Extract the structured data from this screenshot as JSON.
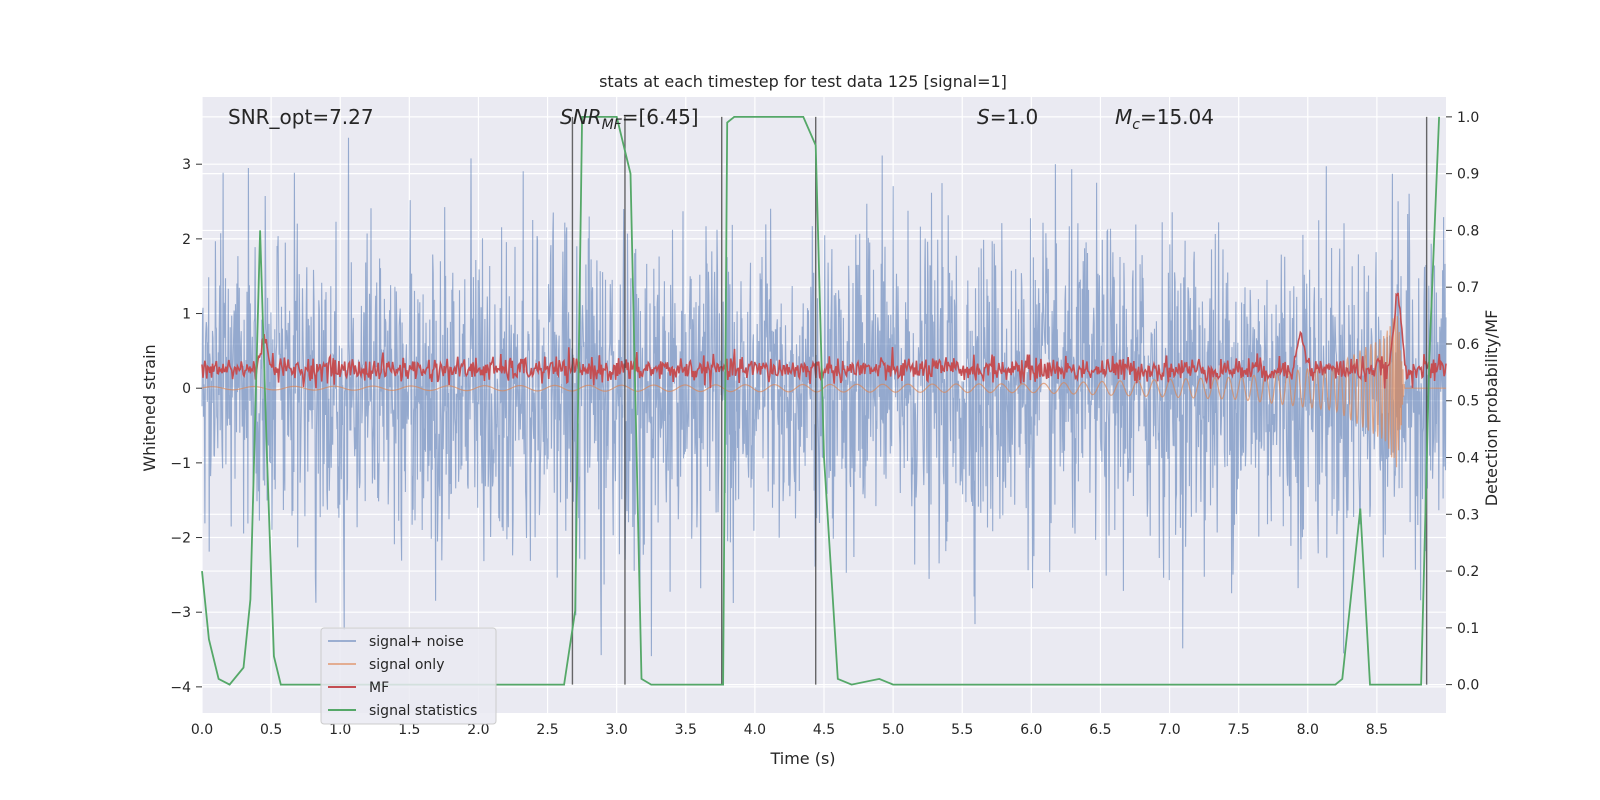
{
  "chart_data": {
    "type": "line",
    "title": "stats at each timestep for test data 125 [signal=1]",
    "xlabel": "Time (s)",
    "ylabel_left": "Whitened strain",
    "ylabel_right": "Detection probability/MF",
    "xlim": [
      0,
      9
    ],
    "ylim_left": [
      -4.35,
      3.9
    ],
    "ylim_right": [
      -0.05,
      1.035
    ],
    "xticks": [
      "0.0",
      "0.5",
      "1.0",
      "1.5",
      "2.0",
      "2.5",
      "3.0",
      "3.5",
      "4.0",
      "4.5",
      "5.0",
      "5.5",
      "6.0",
      "6.5",
      "7.0",
      "7.5",
      "8.0",
      "8.5"
    ],
    "yticks_left": [
      "3",
      "2",
      "1",
      "0",
      "−1",
      "−2",
      "−3",
      "−4"
    ],
    "yticks_right": [
      "1.0",
      "0.9",
      "0.8",
      "0.7",
      "0.6",
      "0.5",
      "0.4",
      "0.3",
      "0.2",
      "0.1",
      "0.0"
    ],
    "grid": true,
    "legend_position": "lower-left",
    "annotations": {
      "snr_opt": "SNR_opt=7.27",
      "snr_mf_base": "SNR",
      "snr_mf_sub": "MF",
      "snr_mf_value": "=[6.45]",
      "s_var": "S",
      "s_value": "=1.0",
      "mc_var": "M",
      "mc_sub": "c",
      "mc_value": "=15.04"
    },
    "vertical_lines_x": [
      2.68,
      3.06,
      3.76,
      4.44,
      8.86
    ],
    "series": [
      {
        "name": "signal+ noise",
        "color": "#4c72b0",
        "axis": "left",
        "description_noise_std": 1.0
      },
      {
        "name": "signal only",
        "color": "#dd8452",
        "axis": "left",
        "chirp_envelope": [
          [
            0.0,
            0.02
          ],
          [
            6.0,
            0.06
          ],
          [
            7.5,
            0.15
          ],
          [
            8.2,
            0.3
          ],
          [
            8.55,
            0.7
          ],
          [
            8.65,
            1.1
          ],
          [
            8.7,
            0.0
          ]
        ]
      },
      {
        "name": "MF",
        "color": "#c44e52",
        "axis": "right",
        "baseline": 0.555,
        "peaks": [
          [
            0.45,
            0.615
          ],
          [
            7.95,
            0.62
          ],
          [
            8.65,
            0.7
          ]
        ]
      },
      {
        "name": "signal statistics",
        "color": "#55a868",
        "axis": "right",
        "points": [
          [
            0.0,
            0.2
          ],
          [
            0.05,
            0.08
          ],
          [
            0.12,
            0.01
          ],
          [
            0.2,
            0.0
          ],
          [
            0.3,
            0.03
          ],
          [
            0.35,
            0.15
          ],
          [
            0.42,
            0.8
          ],
          [
            0.47,
            0.4
          ],
          [
            0.52,
            0.05
          ],
          [
            0.57,
            0.0
          ],
          [
            0.7,
            0.0
          ],
          [
            0.8,
            0.0
          ],
          [
            1.0,
            0.0
          ],
          [
            2.0,
            0.0
          ],
          [
            2.62,
            0.0
          ],
          [
            2.7,
            0.13
          ],
          [
            2.75,
            1.0
          ],
          [
            3.0,
            1.0
          ],
          [
            3.1,
            0.9
          ],
          [
            3.18,
            0.01
          ],
          [
            3.25,
            0.0
          ],
          [
            3.74,
            0.0
          ],
          [
            3.77,
            0.0
          ],
          [
            3.8,
            0.99
          ],
          [
            3.85,
            1.0
          ],
          [
            4.35,
            1.0
          ],
          [
            4.44,
            0.95
          ],
          [
            4.5,
            0.4
          ],
          [
            4.6,
            0.01
          ],
          [
            4.7,
            0.0
          ],
          [
            4.9,
            0.01
          ],
          [
            5.0,
            0.0
          ],
          [
            8.2,
            0.0
          ],
          [
            8.25,
            0.01
          ],
          [
            8.38,
            0.31
          ],
          [
            8.45,
            0.0
          ],
          [
            8.55,
            0.0
          ],
          [
            8.82,
            0.0
          ],
          [
            8.88,
            0.58
          ],
          [
            8.95,
            1.0
          ]
        ]
      }
    ]
  }
}
